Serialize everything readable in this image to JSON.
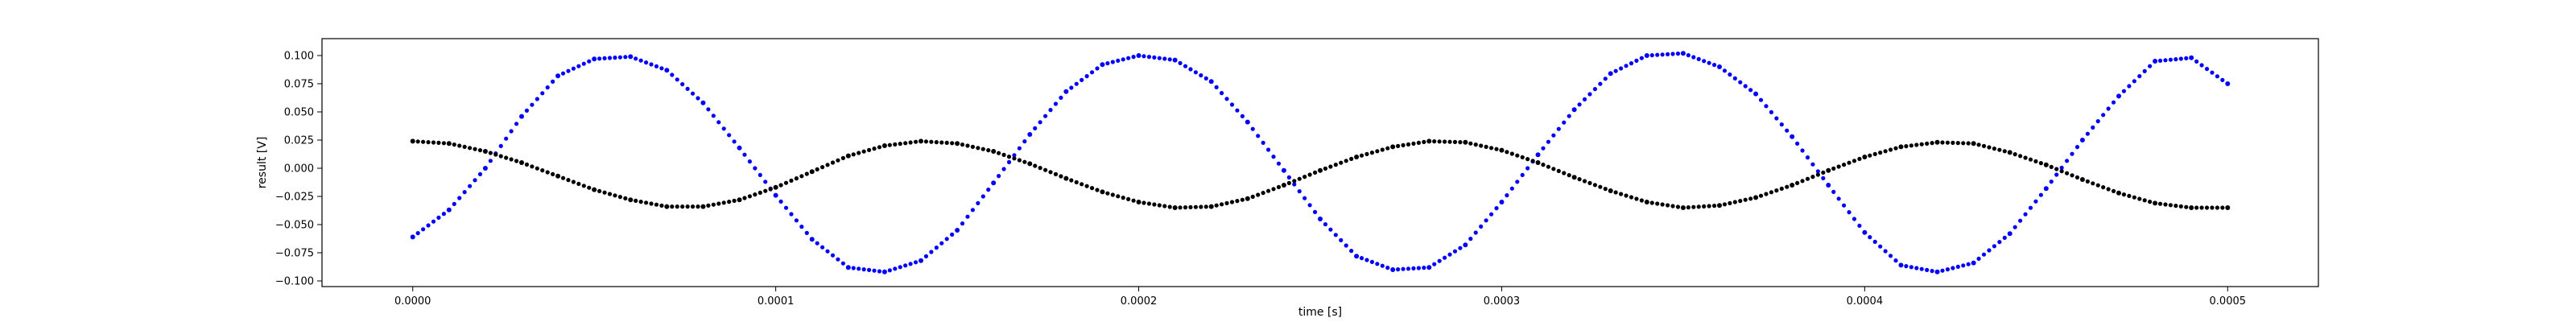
{
  "chart_data": {
    "type": "scatter",
    "title": "",
    "xlabel": "time [s]",
    "ylabel": "result [V]",
    "xlim": [
      -2.5e-05,
      0.000525
    ],
    "ylim": [
      -0.105,
      0.115
    ],
    "xticks": [
      0.0,
      0.0001,
      0.0002,
      0.0003,
      0.0004,
      0.0005
    ],
    "xtick_labels": [
      "0.0000",
      "0.0001",
      "0.0002",
      "0.0003",
      "0.0004",
      "0.0005"
    ],
    "yticks": [
      0.1,
      0.075,
      0.05,
      0.025,
      0.0,
      -0.025,
      -0.05,
      -0.075,
      -0.1
    ],
    "ytick_labels": [
      "0.100",
      "0.075",
      "0.050",
      "0.025",
      "0.000",
      "−0.025",
      "−0.050",
      "−0.075",
      "−0.100"
    ],
    "grid": false,
    "legend": false,
    "series": [
      {
        "color": "#0000ff",
        "marker": "dot",
        "x": [
          0.0,
          1e-05,
          2e-05,
          3e-05,
          4e-05,
          5e-05,
          6e-05,
          7e-05,
          8e-05,
          9e-05,
          0.0001,
          0.00011,
          0.00012,
          0.00013,
          0.00014,
          0.00015,
          0.00016,
          0.00017,
          0.00018,
          0.00019,
          0.0002,
          0.00021,
          0.00022,
          0.00023,
          0.00024,
          0.00025,
          0.00026,
          0.00027,
          0.00028,
          0.00029,
          0.0003,
          0.00031,
          0.00032,
          0.00033,
          0.00034,
          0.00035,
          0.00036,
          0.00037,
          0.00038,
          0.00039,
          0.0004,
          0.00041,
          0.00042,
          0.00043,
          0.00044,
          0.00045,
          0.00046,
          0.00047,
          0.00048,
          0.00049,
          0.0005
        ],
        "y": [
          -0.061,
          -0.037,
          0.0,
          0.046,
          0.082,
          0.097,
          0.099,
          0.087,
          0.058,
          0.018,
          -0.024,
          -0.063,
          -0.088,
          -0.092,
          -0.082,
          -0.055,
          -0.013,
          0.03,
          0.068,
          0.092,
          0.1,
          0.096,
          0.077,
          0.041,
          -0.002,
          -0.045,
          -0.078,
          -0.09,
          -0.088,
          -0.068,
          -0.03,
          0.012,
          0.052,
          0.084,
          0.1,
          0.102,
          0.09,
          0.066,
          0.028,
          -0.015,
          -0.057,
          -0.086,
          -0.092,
          -0.084,
          -0.058,
          -0.018,
          0.025,
          0.064,
          0.095,
          0.098,
          0.075
        ]
      },
      {
        "color": "#000000",
        "marker": "dot",
        "x": [
          0.0,
          1e-05,
          2e-05,
          3e-05,
          4e-05,
          5e-05,
          6e-05,
          7e-05,
          8e-05,
          9e-05,
          0.0001,
          0.00011,
          0.00012,
          0.00013,
          0.00014,
          0.00015,
          0.00016,
          0.00017,
          0.00018,
          0.00019,
          0.0002,
          0.00021,
          0.00022,
          0.00023,
          0.00024,
          0.00025,
          0.00026,
          0.00027,
          0.00028,
          0.00029,
          0.0003,
          0.00031,
          0.00032,
          0.00033,
          0.00034,
          0.00035,
          0.00036,
          0.00037,
          0.00038,
          0.00039,
          0.0004,
          0.00041,
          0.00042,
          0.00043,
          0.00044,
          0.00045,
          0.00046,
          0.00047,
          0.00048,
          0.00049,
          0.0005
        ],
        "y": [
          0.024,
          0.022,
          0.015,
          0.005,
          -0.007,
          -0.019,
          -0.028,
          -0.034,
          -0.034,
          -0.028,
          -0.017,
          -0.003,
          0.011,
          0.02,
          0.024,
          0.022,
          0.015,
          0.004,
          -0.009,
          -0.021,
          -0.03,
          -0.035,
          -0.034,
          -0.027,
          -0.015,
          -0.002,
          0.01,
          0.019,
          0.024,
          0.023,
          0.016,
          0.005,
          -0.008,
          -0.02,
          -0.03,
          -0.035,
          -0.033,
          -0.026,
          -0.015,
          -0.002,
          0.01,
          0.019,
          0.023,
          0.022,
          0.014,
          0.003,
          -0.01,
          -0.022,
          -0.031,
          -0.035,
          -0.035
        ]
      }
    ]
  }
}
